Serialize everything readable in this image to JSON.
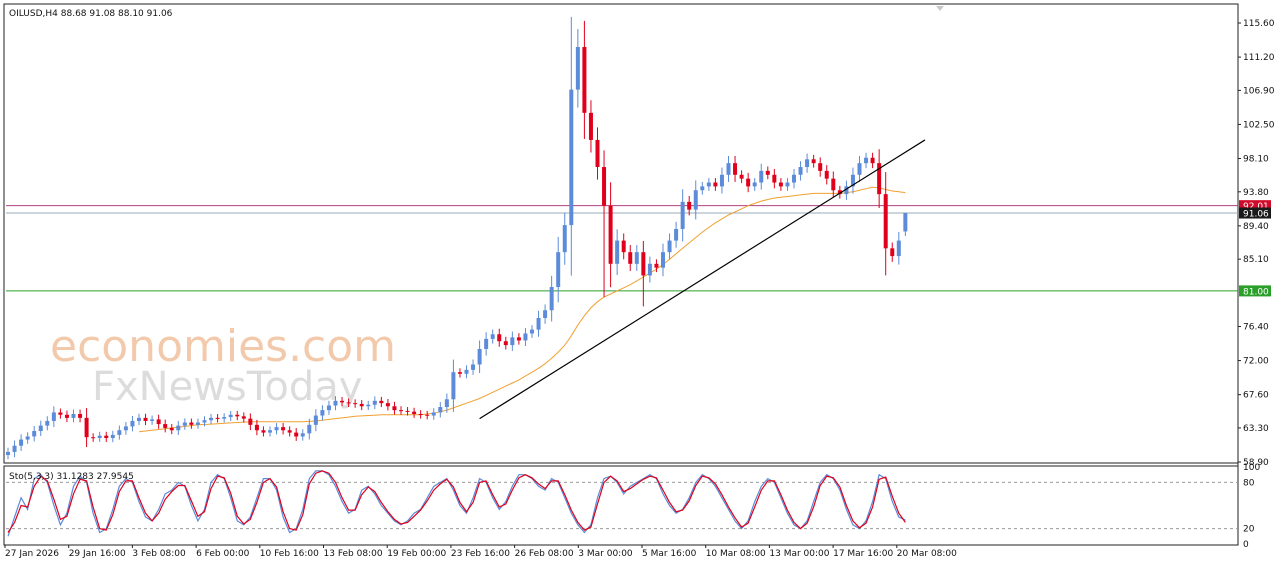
{
  "header": {
    "symbol_line": "OILUSD,H4  88.68 91.08 88.10 91.06",
    "stoch_line": "Sto(5,3,3) 31.1283 27.9545"
  },
  "watermark": {
    "line1": "economies.com",
    "line2": "FxNewsToday"
  },
  "colors": {
    "bull": "#5b8bd9",
    "bear": "#e0001b",
    "ma": "#f0a030",
    "trendline": "#000000",
    "resistance": "#b0407f",
    "support": "#2aa02a",
    "price_line": "#9aa8b8",
    "stoch_main": "#5b8bd9",
    "stoch_signal": "#e0001b"
  },
  "chart_data": [
    {
      "type": "candlestick",
      "title": "OILUSD,H4",
      "timeframe": "H4",
      "last_bar": {
        "open": 88.68,
        "high": 91.08,
        "low": 88.1,
        "close": 91.06
      },
      "ylim": [
        58.9,
        117.8
      ],
      "y_ticks": [
        "115.60",
        "111.20",
        "106.90",
        "102.50",
        "98.10",
        "93.80",
        "89.40",
        "85.10",
        "76.40",
        "72.00",
        "67.60",
        "63.30",
        "58.90"
      ],
      "x_ticks": [
        "27 Jan 2026",
        "29 Jan 16:00",
        "3 Feb 08:00",
        "6 Feb 00:00",
        "10 Feb 16:00",
        "13 Feb 08:00",
        "19 Feb 00:00",
        "23 Feb 16:00",
        "26 Feb 08:00",
        "3 Mar 00:00",
        "5 Mar 16:00",
        "10 Mar 08:00",
        "13 Mar 00:00",
        "17 Mar 16:00",
        "20 Mar 08:00"
      ],
      "levels": [
        {
          "name": "resistance",
          "value": 92.01,
          "label": "92.01"
        },
        {
          "name": "current",
          "value": 91.06,
          "label": "91.06"
        },
        {
          "name": "support",
          "value": 81.0,
          "label": "81.00"
        }
      ],
      "series_close": [
        60.2,
        61.0,
        61.8,
        62.2,
        62.9,
        63.6,
        64.2,
        65.3,
        65.0,
        64.6,
        65.1,
        64.6,
        62.1,
        62.0,
        62.3,
        62.0,
        62.4,
        63.0,
        63.5,
        64.2,
        64.6,
        64.2,
        64.4,
        63.8,
        63.3,
        63.0,
        63.6,
        64.0,
        63.7,
        64.0,
        64.3,
        64.6,
        64.5,
        64.7,
        65.0,
        64.8,
        64.5,
        63.7,
        63.0,
        62.7,
        63.0,
        63.4,
        63.0,
        62.7,
        62.2,
        62.6,
        63.7,
        64.9,
        65.6,
        66.2,
        66.8,
        66.6,
        66.5,
        66.4,
        66.1,
        66.3,
        66.8,
        66.5,
        66.1,
        65.6,
        65.5,
        65.4,
        65.1,
        65.0,
        64.9,
        65.3,
        66.0,
        67.0,
        70.5,
        70.3,
        70.8,
        71.5,
        73.5,
        74.8,
        75.4,
        74.5,
        74.0,
        75.0,
        74.6,
        75.5,
        76.0,
        77.5,
        78.5,
        81.5,
        86.0,
        89.5,
        107.0,
        112.5,
        104.0,
        100.5,
        97.0,
        92.0,
        84.5,
        87.5,
        86.0,
        84.5,
        86.0,
        83.0,
        84.5,
        84.0,
        86.0,
        87.5,
        89.0,
        92.5,
        91.5,
        94.0,
        94.5,
        95.0,
        94.5,
        96.0,
        97.5,
        96.0,
        95.5,
        94.5,
        95.0,
        96.5,
        96.0,
        95.0,
        94.5,
        95.0,
        96.0,
        97.0,
        98.0,
        97.5,
        96.5,
        95.5,
        94.0,
        93.5,
        94.5,
        96.0,
        97.5,
        98.2,
        97.5,
        93.5,
        86.5,
        85.5,
        87.5,
        91.06
      ],
      "ma_values": [
        null,
        null,
        null,
        null,
        null,
        null,
        null,
        null,
        null,
        null,
        null,
        null,
        null,
        null,
        null,
        null,
        null,
        null,
        null,
        null,
        62.8,
        62.9,
        63.0,
        63.1,
        63.2,
        63.3,
        63.4,
        63.5,
        63.6,
        63.7,
        63.75,
        63.8,
        63.85,
        63.9,
        63.95,
        64.0,
        64.05,
        64.1,
        64.1,
        64.1,
        64.1,
        64.1,
        64.1,
        64.1,
        64.1,
        64.1,
        64.15,
        64.2,
        64.3,
        64.4,
        64.5,
        64.6,
        64.7,
        64.8,
        64.85,
        64.9,
        64.95,
        65.0,
        65.0,
        65.0,
        65.0,
        65.0,
        65.0,
        65.0,
        65.1,
        65.2,
        65.4,
        65.6,
        65.9,
        66.2,
        66.5,
        66.8,
        67.1,
        67.5,
        67.9,
        68.3,
        68.7,
        69.1,
        69.5,
        70.0,
        70.5,
        71.0,
        71.6,
        72.3,
        73.1,
        74.0,
        75.2,
        76.6,
        77.8,
        78.8,
        79.6,
        80.2,
        80.6,
        81.0,
        81.4,
        81.8,
        82.3,
        82.8,
        83.3,
        83.8,
        84.4,
        85.1,
        85.8,
        86.5,
        87.2,
        87.9,
        88.6,
        89.2,
        89.8,
        90.3,
        90.8,
        91.2,
        91.6,
        92.0,
        92.3,
        92.6,
        92.8,
        93.0,
        93.1,
        93.2,
        93.3,
        93.4,
        93.5,
        93.6,
        93.6,
        93.6,
        93.6,
        93.6,
        93.7,
        93.8,
        94.0,
        94.2,
        94.4,
        94.3,
        94.1,
        93.9,
        93.8,
        93.7
      ],
      "trendline": {
        "from": {
          "bar": 72,
          "price": 64.5
        },
        "to": {
          "bar": 140,
          "price": 100.5
        }
      }
    },
    {
      "type": "line",
      "title": "Sto(5,3,3)",
      "ylim": [
        0,
        100
      ],
      "y_ticks": [
        "100",
        "80",
        "20",
        "0"
      ],
      "levels": [
        80,
        20
      ],
      "last_values": {
        "main": 31.1283,
        "signal": 27.9545
      },
      "series": [
        {
          "name": "main",
          "values": [
            10,
            35,
            60,
            45,
            85,
            90,
            80,
            50,
            25,
            40,
            75,
            88,
            80,
            40,
            15,
            20,
            45,
            75,
            85,
            80,
            55,
            35,
            30,
            45,
            65,
            70,
            80,
            75,
            50,
            30,
            45,
            80,
            90,
            85,
            60,
            30,
            25,
            35,
            60,
            85,
            85,
            70,
            35,
            15,
            20,
            45,
            85,
            95,
            95,
            90,
            75,
            55,
            40,
            45,
            70,
            75,
            65,
            50,
            40,
            30,
            25,
            30,
            40,
            45,
            60,
            75,
            80,
            85,
            70,
            50,
            40,
            60,
            85,
            80,
            60,
            45,
            55,
            75,
            90,
            90,
            85,
            75,
            70,
            85,
            80,
            60,
            40,
            25,
            15,
            25,
            60,
            85,
            88,
            80,
            65,
            75,
            80,
            85,
            90,
            85,
            65,
            50,
            40,
            45,
            60,
            80,
            90,
            85,
            75,
            60,
            45,
            30,
            20,
            30,
            55,
            75,
            85,
            80,
            60,
            40,
            25,
            20,
            30,
            55,
            80,
            90,
            85,
            70,
            45,
            25,
            20,
            30,
            55,
            90,
            85,
            55,
            35,
            31
          ]
        },
        {
          "name": "signal",
          "values": [
            15,
            28,
            50,
            48,
            75,
            88,
            82,
            58,
            32,
            36,
            65,
            84,
            82,
            48,
            20,
            18,
            38,
            68,
            82,
            82,
            60,
            40,
            30,
            40,
            58,
            68,
            76,
            76,
            56,
            36,
            42,
            72,
            88,
            86,
            66,
            36,
            26,
            32,
            54,
            80,
            85,
            74,
            42,
            20,
            18,
            38,
            78,
            92,
            95,
            92,
            80,
            60,
            44,
            44,
            64,
            74,
            68,
            54,
            42,
            32,
            26,
            28,
            36,
            44,
            56,
            70,
            78,
            84,
            74,
            54,
            42,
            54,
            80,
            82,
            64,
            48,
            52,
            70,
            86,
            90,
            86,
            78,
            72,
            82,
            82,
            64,
            44,
            28,
            18,
            22,
            52,
            80,
            88,
            82,
            68,
            72,
            78,
            84,
            88,
            86,
            70,
            54,
            42,
            44,
            56,
            76,
            88,
            86,
            78,
            64,
            48,
            34,
            22,
            27,
            48,
            70,
            82,
            82,
            64,
            44,
            28,
            20,
            27,
            48,
            76,
            88,
            86,
            74,
            50,
            30,
            21,
            27,
            48,
            84,
            87,
            62,
            40,
            28
          ]
        }
      ]
    }
  ]
}
